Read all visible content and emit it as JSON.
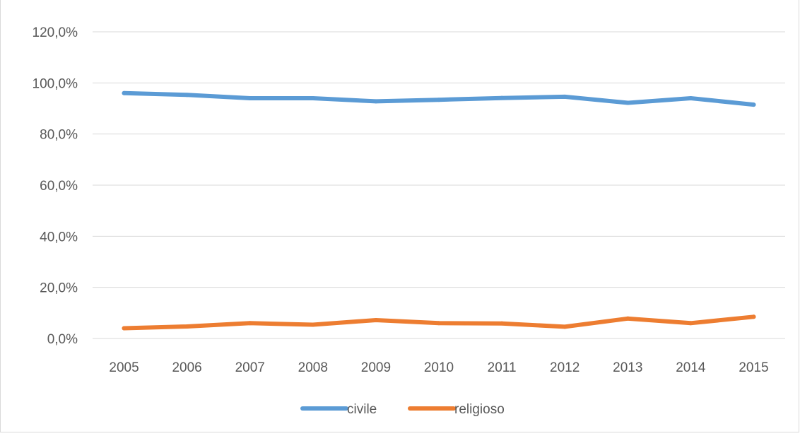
{
  "chart_data": {
    "type": "line",
    "title": "",
    "xlabel": "",
    "ylabel": "",
    "categories": [
      "2005",
      "2006",
      "2007",
      "2008",
      "2009",
      "2010",
      "2011",
      "2012",
      "2013",
      "2014",
      "2015"
    ],
    "y_ticks": [
      "0,0%",
      "20,0%",
      "40,0%",
      "60,0%",
      "80,0%",
      "100,0%",
      "120,0%"
    ],
    "ylim": [
      0,
      120
    ],
    "grid": true,
    "legend_position": "bottom",
    "series": [
      {
        "name": "civile",
        "color": "#5b9bd5",
        "values": [
          96.0,
          95.3,
          94.0,
          94.0,
          92.8,
          93.4,
          94.1,
          94.6,
          92.2,
          94.0,
          91.5
        ]
      },
      {
        "name": "religioso",
        "color": "#ed7d31",
        "values": [
          4.0,
          4.7,
          6.0,
          5.4,
          7.2,
          6.0,
          5.9,
          4.6,
          7.8,
          6.0,
          8.5
        ]
      }
    ]
  }
}
